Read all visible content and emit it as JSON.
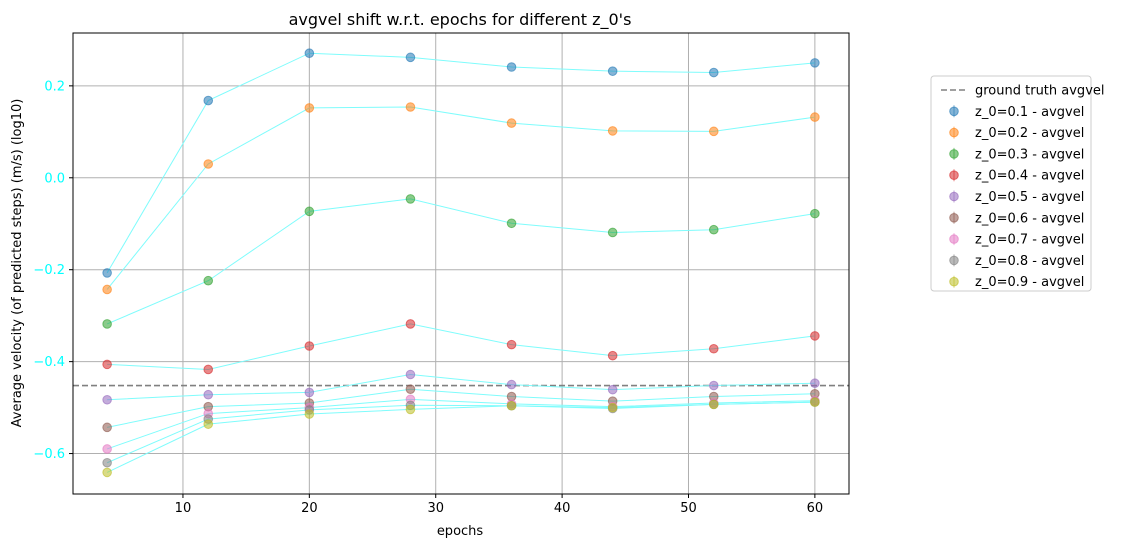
{
  "chart_data": {
    "type": "scatter",
    "title": "avgvel shift w.r.t. epochs for different z_0's",
    "xlabel": "epochs",
    "ylabel": "Average velocity (of predicted steps) (m/s) (log10)",
    "xlim": [
      1.3,
      62.7
    ],
    "ylim": [
      -0.688,
      0.315
    ],
    "xticks": [
      10,
      20,
      30,
      40,
      50,
      60
    ],
    "xtick_labels": [
      "10",
      "20",
      "30",
      "40",
      "50",
      "60"
    ],
    "yticks": [
      -0.6,
      -0.4,
      -0.2,
      0.0,
      0.2
    ],
    "ytick_labels": [
      "−0.6",
      "−0.4",
      "−0.2",
      "0.0",
      "0.2"
    ],
    "ytick_color": "#00ffff",
    "grid": true,
    "legend_position": "right, outside plot",
    "connector_line_color": "#7ffcfc",
    "reference_line": {
      "label": "ground truth avgvel",
      "y": -0.452,
      "color": "#808080",
      "style": "dashed"
    },
    "x": [
      4,
      12,
      20,
      28,
      36,
      44,
      52,
      60
    ],
    "series": [
      {
        "name": "z_0=0.1 - avgvel",
        "color": "#1f77b4",
        "values": [
          -0.207,
          0.168,
          0.271,
          0.262,
          0.241,
          0.232,
          0.229,
          0.25
        ]
      },
      {
        "name": "z_0=0.2 - avgvel",
        "color": "#ff7f0e",
        "values": [
          -0.243,
          0.03,
          0.152,
          0.154,
          0.119,
          0.102,
          0.101,
          0.132
        ]
      },
      {
        "name": "z_0=0.3 - avgvel",
        "color": "#2ca02c",
        "values": [
          -0.318,
          -0.224,
          -0.073,
          -0.046,
          -0.099,
          -0.119,
          -0.113,
          -0.078
        ]
      },
      {
        "name": "z_0=0.4 - avgvel",
        "color": "#d62728",
        "values": [
          -0.406,
          -0.417,
          -0.366,
          -0.318,
          -0.363,
          -0.387,
          -0.372,
          -0.344
        ]
      },
      {
        "name": "z_0=0.5 - avgvel",
        "color": "#9467bd",
        "values": [
          -0.483,
          -0.472,
          -0.467,
          -0.428,
          -0.45,
          -0.461,
          -0.452,
          -0.447
        ]
      },
      {
        "name": "z_0=0.6 - avgvel",
        "color": "#8c564b",
        "values": [
          -0.543,
          -0.498,
          -0.49,
          -0.46,
          -0.476,
          -0.486,
          -0.476,
          -0.47
        ]
      },
      {
        "name": "z_0=0.7 - avgvel",
        "color": "#e377c2",
        "values": [
          -0.59,
          -0.513,
          -0.5,
          -0.482,
          -0.492,
          -0.498,
          -0.49,
          -0.485
        ]
      },
      {
        "name": "z_0=0.8 - avgvel",
        "color": "#7f7f7f",
        "values": [
          -0.62,
          -0.525,
          -0.505,
          -0.495,
          -0.496,
          -0.502,
          -0.493,
          -0.488
        ]
      },
      {
        "name": "z_0=0.9 - avgvel",
        "color": "#bcbd22",
        "values": [
          -0.641,
          -0.536,
          -0.514,
          -0.504,
          -0.496,
          -0.5,
          -0.493,
          -0.488
        ]
      }
    ]
  }
}
